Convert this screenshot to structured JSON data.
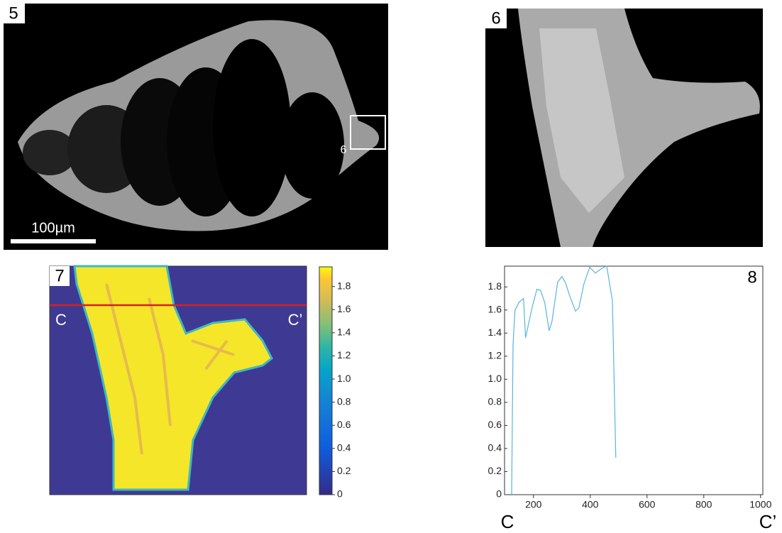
{
  "panels": [
    {
      "label": "5",
      "scale_bar": "100µm",
      "inset_label": "6"
    },
    {
      "label": "6"
    },
    {
      "label": "7",
      "line_start": "C",
      "line_end": "C’",
      "colorbar": {
        "ylim": [
          0,
          1.97
        ],
        "yticks": [
          0,
          0.2,
          0.4,
          0.6,
          0.8,
          {
            "value": 1,
            "label": "1.0"
          },
          1.2,
          1.4,
          1.6,
          1.8
        ]
      }
    },
    {
      "label": "8",
      "x_start": "C",
      "x_end": "C’"
    }
  ],
  "chart_data": {
    "type": "line",
    "color": "#5ab4dc",
    "x": [
      123,
      128,
      135,
      150,
      165,
      172,
      180,
      195,
      212,
      225,
      240,
      255,
      265,
      285,
      300,
      312,
      328,
      348,
      360,
      378,
      398,
      418,
      440,
      458,
      478,
      490
    ],
    "values": [
      0,
      1.3,
      1.6,
      1.67,
      1.7,
      1.36,
      1.45,
      1.62,
      1.78,
      1.77,
      1.66,
      1.42,
      1.5,
      1.84,
      1.89,
      1.84,
      1.72,
      1.59,
      1.62,
      1.83,
      1.97,
      1.92,
      1.96,
      1.98,
      1.68,
      0.32
    ],
    "xlim": [
      98,
      1008
    ],
    "xticks": [
      200,
      400,
      600,
      800,
      1000
    ],
    "ylim": [
      0,
      1.98
    ],
    "yticks": [
      0,
      0.2,
      0.4,
      0.6,
      0.8,
      {
        "value": 1,
        "label": "1.0"
      },
      1.2,
      1.4,
      1.6,
      1.8
    ]
  }
}
